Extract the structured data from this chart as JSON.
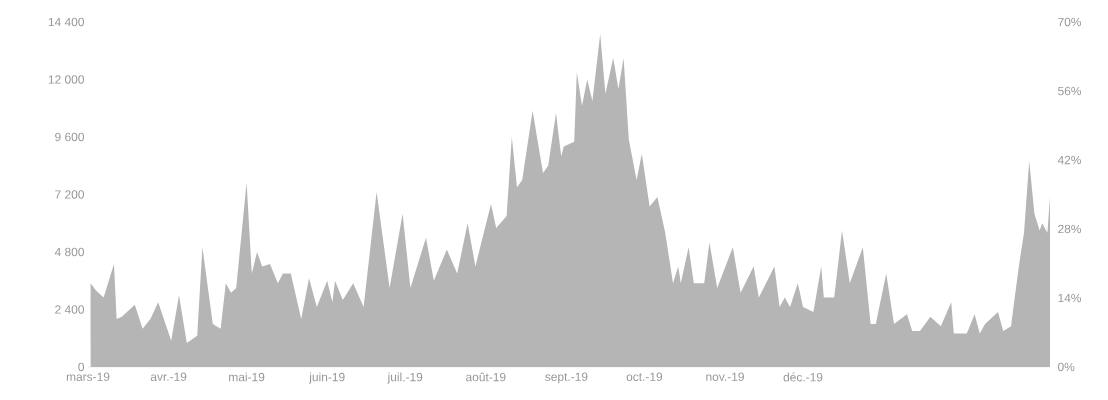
{
  "chart_data": {
    "type": "area",
    "color": "#b5b5b5",
    "x": [
      "2019-03-02",
      "2019-03-04",
      "2019-03-07",
      "2019-03-11",
      "2019-03-12",
      "2019-03-14",
      "2019-03-19",
      "2019-03-22",
      "2019-03-25",
      "2019-03-28",
      "2019-04-02",
      "2019-04-05",
      "2019-04-08",
      "2019-04-12",
      "2019-04-14",
      "2019-04-18",
      "2019-04-21",
      "2019-04-23",
      "2019-04-25",
      "2019-04-27",
      "2019-05-01",
      "2019-05-03",
      "2019-05-05",
      "2019-05-07",
      "2019-05-10",
      "2019-05-13",
      "2019-05-15",
      "2019-05-18",
      "2019-05-22",
      "2019-05-25",
      "2019-05-28",
      "2019-06-01",
      "2019-06-03",
      "2019-06-04",
      "2019-06-07",
      "2019-06-11",
      "2019-06-15",
      "2019-06-20",
      "2019-06-25",
      "2019-06-30",
      "2019-07-03",
      "2019-07-09",
      "2019-07-12",
      "2019-07-17",
      "2019-07-21",
      "2019-07-25",
      "2019-07-28",
      "2019-08-03",
      "2019-08-05",
      "2019-08-09",
      "2019-08-11",
      "2019-08-13",
      "2019-08-15",
      "2019-08-19",
      "2019-08-23",
      "2019-08-25",
      "2019-08-28",
      "2019-08-30",
      "2019-08-31",
      "2019-09-04",
      "2019-09-05",
      "2019-09-07",
      "2019-09-09",
      "2019-09-11",
      "2019-09-14",
      "2019-09-16",
      "2019-09-19",
      "2019-09-21",
      "2019-09-23",
      "2019-09-25",
      "2019-09-28",
      "2019-09-30",
      "2019-10-03",
      "2019-10-06",
      "2019-10-09",
      "2019-10-12",
      "2019-10-14",
      "2019-10-15",
      "2019-10-18",
      "2019-10-20",
      "2019-10-24",
      "2019-10-26",
      "2019-10-29",
      "2019-11-04",
      "2019-11-07",
      "2019-11-12",
      "2019-11-14",
      "2019-11-20",
      "2019-11-22",
      "2019-11-24",
      "2019-11-26",
      "2019-11-29",
      "2019-12-01",
      "2019-12-05",
      "2019-12-08",
      "2019-12-09",
      "2019-12-13",
      "2019-12-16",
      "2019-12-19",
      "2019-12-24",
      "2019-12-27",
      "2019-12-29",
      "2020-01-02",
      "2020-01-05",
      "2020-01-10",
      "2020-01-12",
      "2020-01-15",
      "2020-01-19",
      "2020-01-23",
      "2020-01-27",
      "2020-01-28",
      "2020-02-02",
      "2020-02-05",
      "2020-02-07",
      "2020-02-09",
      "2020-02-14",
      "2020-02-16",
      "2020-02-19",
      "2020-02-22",
      "2020-02-24",
      "2020-02-26",
      "2020-02-28",
      "2020-03-01",
      "2020-03-02",
      "2020-03-04",
      "2020-03-05"
    ],
    "values": [
      3500,
      3200,
      2900,
      4300,
      2000,
      2100,
      2600,
      1600,
      2000,
      2700,
      1100,
      3000,
      1000,
      1300,
      5000,
      1800,
      1600,
      3500,
      3100,
      3300,
      7700,
      3900,
      4800,
      4200,
      4300,
      3500,
      3900,
      3900,
      2000,
      3700,
      2500,
      3600,
      2700,
      3600,
      2800,
      3500,
      2500,
      7300,
      3300,
      6400,
      3300,
      5400,
      3600,
      4900,
      3900,
      6000,
      4200,
      6800,
      5800,
      6300,
      9600,
      7500,
      7800,
      10700,
      8100,
      8400,
      10600,
      8800,
      9200,
      9400,
      12300,
      10900,
      12000,
      11100,
      13900,
      11400,
      12900,
      11600,
      12900,
      9500,
      7800,
      8900,
      6700,
      7100,
      5600,
      3500,
      4200,
      3500,
      5000,
      3500,
      3500,
      5200,
      3300,
      5000,
      3100,
      4200,
      2900,
      4200,
      2500,
      2900,
      2500,
      3500,
      2500,
      2300,
      4200,
      2900,
      2900,
      5700,
      3500,
      5000,
      1800,
      1800,
      3900,
      1800,
      2200,
      1500,
      1500,
      2100,
      1700,
      2700,
      1400,
      1400,
      2200,
      1400,
      1800,
      2300,
      1500,
      1700,
      4200,
      5600,
      8600,
      6400,
      5700,
      6000,
      5600,
      7100
    ],
    "xlim": [
      "2019-03-01",
      "2020-03-05"
    ],
    "xticks": [
      {
        "value": "2019-03-01",
        "label": "mars-19"
      },
      {
        "value": "2019-04-01",
        "label": "avr.-19"
      },
      {
        "value": "2019-05-01",
        "label": "mai-19"
      },
      {
        "value": "2019-06-01",
        "label": "juin-19"
      },
      {
        "value": "2019-07-01",
        "label": "juil.-19"
      },
      {
        "value": "2019-08-01",
        "label": "août-19"
      },
      {
        "value": "2019-09-01",
        "label": "sept.-19"
      },
      {
        "value": "2019-10-01",
        "label": "oct.-19"
      },
      {
        "value": "2019-11-01",
        "label": "nov.-19"
      },
      {
        "value": "2019-12-01",
        "label": "déc.-19"
      }
    ],
    "ylim": [
      0,
      14400
    ],
    "yticks": [
      0,
      {
        "value": 2400,
        "label": "2 400"
      },
      {
        "value": 4800,
        "label": "4 800"
      },
      {
        "value": 7200,
        "label": "7 200"
      },
      {
        "value": 9600,
        "label": "9 600"
      },
      {
        "value": 12000,
        "label": "12 000"
      },
      {
        "value": 14400,
        "label": "14 400"
      }
    ],
    "y2lim": [
      0,
      70
    ],
    "y2ticks": [
      {
        "value": 0,
        "label": "0%"
      },
      {
        "value": 14,
        "label": "14%"
      },
      {
        "value": 28,
        "label": "28%"
      },
      {
        "value": 42,
        "label": "42%"
      },
      {
        "value": 56,
        "label": "56%"
      },
      {
        "value": 70,
        "label": "70%"
      }
    ]
  }
}
